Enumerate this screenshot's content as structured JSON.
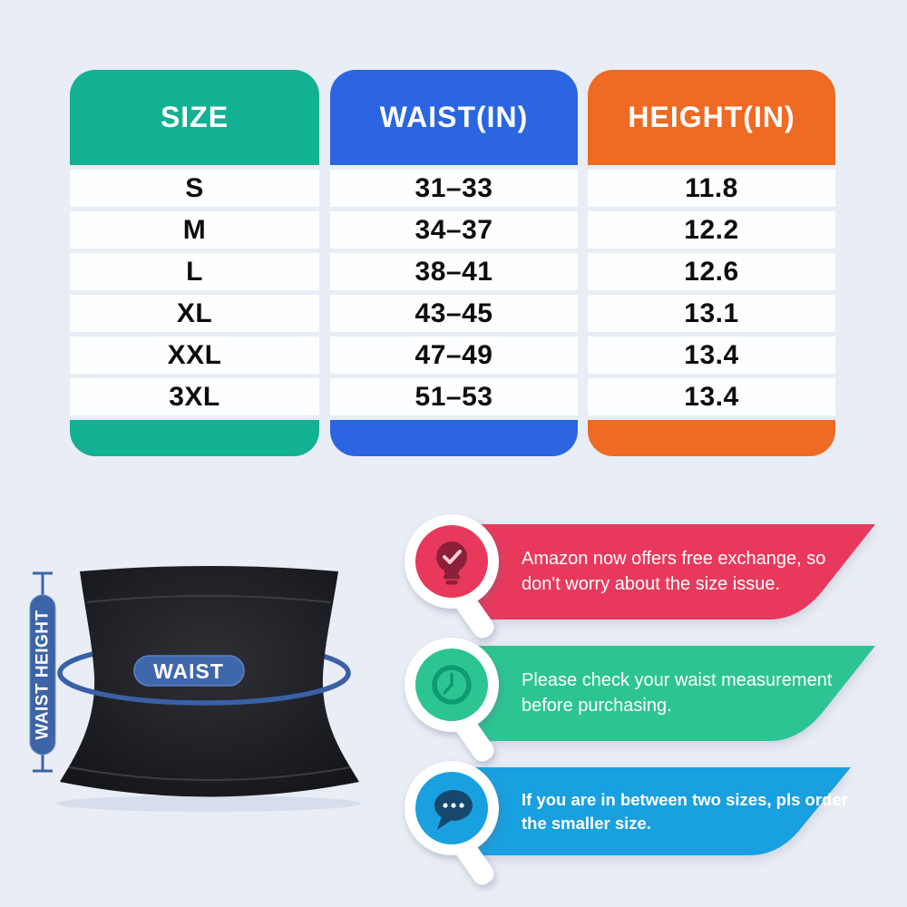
{
  "page": {
    "background": "#e9edf5"
  },
  "table": {
    "columns": [
      {
        "header": "SIZE",
        "color": "#12b193",
        "values": [
          "S",
          "M",
          "L",
          "XL",
          "XXL",
          "3XL"
        ]
      },
      {
        "header": "WAIST(IN)",
        "color": "#2b65e2",
        "values": [
          "31–33",
          "34–37",
          "38–41",
          "43–45",
          "47–49",
          "51–53"
        ]
      },
      {
        "header": "HEIGHT(IN)",
        "color": "#ef6a23",
        "values": [
          "11.8",
          "12.2",
          "12.6",
          "13.1",
          "13.4",
          "13.4"
        ]
      }
    ]
  },
  "diagram": {
    "waist_label": "WAIST",
    "height_label": "WAIST HEIGHT",
    "accent_color": "#3c64a6"
  },
  "callouts": [
    {
      "icon": "lightbulb-check-icon",
      "color": "#e8395c",
      "icon_color": "#8c2038",
      "text": "Amazon now offers free exchange, so\ndon't worry about the size issue."
    },
    {
      "icon": "clock-icon",
      "color": "#2dc493",
      "icon_color": "#0e9b6f",
      "text": "Please check your waist measurement\nbefore purchasing."
    },
    {
      "icon": "chat-dots-icon",
      "color": "#18a0e0",
      "icon_color": "#16486b",
      "text": "If you are in between two sizes, pls order\nthe smaller size."
    }
  ]
}
